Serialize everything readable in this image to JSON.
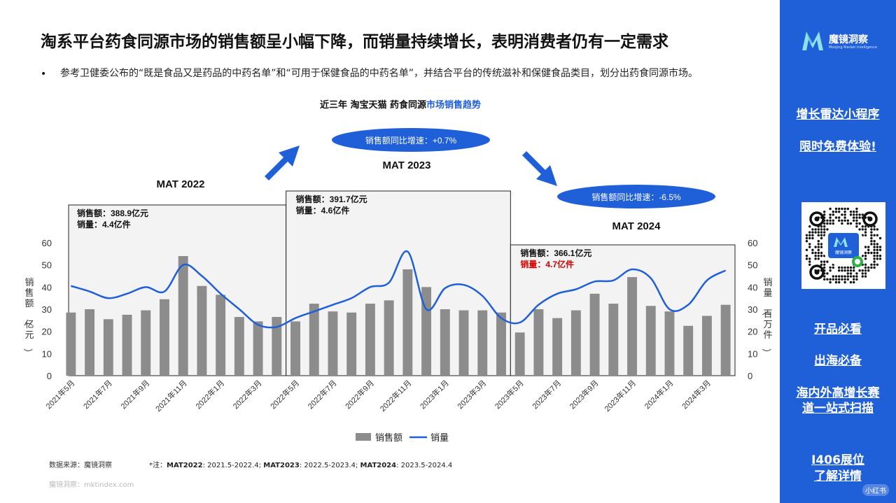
{
  "title": "淘系平台药食同源市场的销售额呈小幅下降，而销量持续增长，表明消费者仍有一定需求",
  "bullet": "参考卫健委公布的“既是食品又是药品的中药名单”和“可用于保健食品的中药名单”，并结合平台的传统滋补和保健食品类目，划分出药食同源市场。",
  "chart_title_prefix": "近三年 淘宝天猫 药食同源",
  "chart_title_highlight": "市场销售趋势",
  "colors": {
    "bar": "#8c8c8c",
    "line": "#1f5fd8",
    "accent": "#1f5fd8",
    "red": "#d40000"
  },
  "chart_data": {
    "type": "bar",
    "categories": [
      "2021年5月",
      "2021年6月",
      "2021年7月",
      "2021年8月",
      "2021年9月",
      "2021年10月",
      "2021年11月",
      "2021年12月",
      "2022年1月",
      "2022年2月",
      "2022年3月",
      "2022年4月",
      "2022年5月",
      "2022年6月",
      "2022年7月",
      "2022年8月",
      "2022年9月",
      "2022年10月",
      "2022年11月",
      "2022年12月",
      "2023年1月",
      "2023年2月",
      "2023年3月",
      "2023年4月",
      "2023年5月",
      "2023年6月",
      "2023年7月",
      "2023年8月",
      "2023年9月",
      "2023年10月",
      "2023年11月",
      "2023年12月",
      "2024年1月",
      "2024年2月",
      "2024年3月",
      "2024年4月"
    ],
    "x_tick_labels": [
      "2021年5月",
      "2021年7月",
      "2021年9月",
      "2021年11月",
      "2022年1月",
      "2022年3月",
      "2022年5月",
      "2022年7月",
      "2022年9月",
      "2022年11月",
      "2023年1月",
      "2023年3月",
      "2023年5月",
      "2023年7月",
      "2023年9月",
      "2023年11月",
      "2024年1月",
      "2024年3月"
    ],
    "series": [
      {
        "name": "销售额",
        "type": "bar",
        "axis": "left",
        "values": [
          28.5,
          30,
          25.5,
          27.5,
          29.5,
          34.5,
          54,
          40.5,
          36.5,
          26.5,
          24.5,
          26.5,
          24.5,
          32.5,
          29,
          28.5,
          32.5,
          34,
          48,
          40,
          30,
          29.5,
          29.5,
          28.5,
          19.5,
          30,
          26,
          29.5,
          37,
          32.5,
          44.5,
          31.5,
          29,
          22.5,
          27,
          32
        ]
      },
      {
        "name": "销量",
        "type": "line",
        "axis": "right",
        "values": [
          40.5,
          38,
          35,
          37,
          40,
          38,
          50,
          45,
          37,
          30,
          23,
          22,
          26,
          29,
          32,
          35,
          40,
          42,
          56,
          30,
          39.5,
          41,
          36,
          26,
          24,
          32,
          37,
          39,
          42.5,
          43,
          48,
          44,
          30,
          32,
          43,
          47.5
        ]
      }
    ],
    "y_left": {
      "label": "销售额（亿元）",
      "ylim": [
        0,
        60
      ],
      "ticks": [
        0,
        10,
        20,
        30,
        40,
        50,
        60
      ]
    },
    "y_right": {
      "label": "销量（百万件）",
      "ylim": [
        0,
        60
      ],
      "ticks": [
        0,
        10,
        20,
        30,
        40,
        50,
        60
      ]
    },
    "legend": {
      "position": "bottom",
      "items": [
        "销售额",
        "销量"
      ]
    },
    "periods": [
      {
        "label": "MAT 2022",
        "sales": "销售额：388.9亿元",
        "volume": "销量：4.4亿件"
      },
      {
        "label": "MAT 2023",
        "sales": "销售额：391.7亿元",
        "volume": "销量：4.6亿件"
      },
      {
        "label": "MAT 2024",
        "sales": "销售额：366.1亿元",
        "volume": "销量：4.7亿件"
      }
    ],
    "growth_badges": [
      "销售额同比增速：+0.7%",
      "销售额同比增速：-6.5%"
    ]
  },
  "source": "数据来源：魔镜洞察",
  "note_parts": [
    "*注：",
    "MAT2022",
    ": 2021.5-2022.4; ",
    "MAT2023",
    ": 2022.5-2023.4; ",
    "MAT2024",
    ": 2023.5-2024.4"
  ],
  "watermark": "魔镜洞察：mktindex.com",
  "sidebar": {
    "logo_text": "魔镜洞察",
    "logo_sub": "Moojing Market Intelligence",
    "promo_1": "增长雷达小程序",
    "promo_2": "限时免费体验!",
    "qr_label": "魔镜洞察",
    "link_1": "开品必看",
    "link_2": "出海必备",
    "link_3a": "海内外高增长赛",
    "link_3b": "道一站式扫描",
    "booth_1": "I406展位",
    "booth_2": "了解详情",
    "tag": "小红书"
  }
}
